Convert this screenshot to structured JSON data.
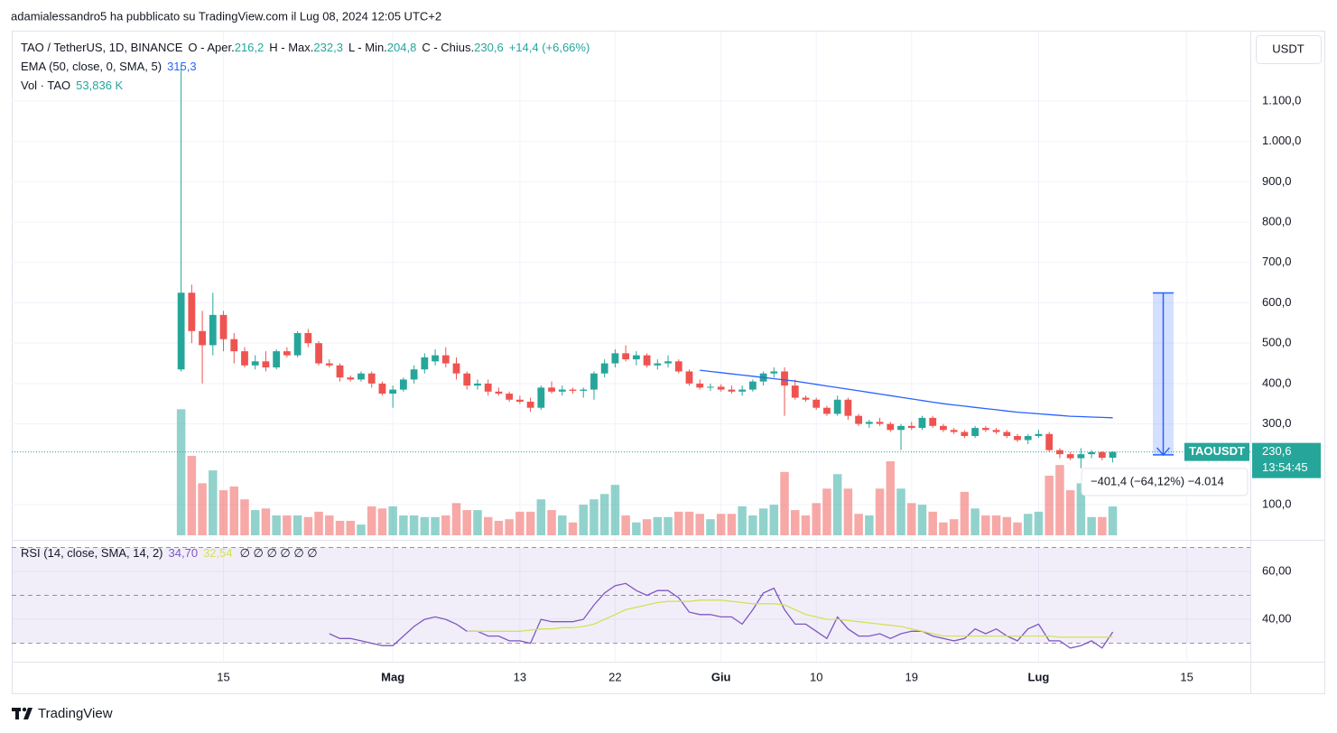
{
  "header": {
    "text": "adamialessandro5 ha pubblicato su TradingView.com il Lug 08, 2024 12:05 UTC+2"
  },
  "footer": {
    "brand": "TradingView"
  },
  "chart_data": [
    {
      "type": "candlestick",
      "symbol": "TAO / TetherUS, 1D, BINANCE",
      "ohlc_legend": [
        {
          "key": "O - Aper.",
          "value": "216,2"
        },
        {
          "key": "H - Max.",
          "value": "232,3"
        },
        {
          "key": "L - Min.",
          "value": "204,8"
        },
        {
          "key": "C - Chius.",
          "value": "230,6"
        }
      ],
      "change": "+14,4 (+6,66%)",
      "currency": "USDT",
      "x": [
        0,
        1,
        2,
        3,
        4,
        5,
        6,
        7,
        8,
        9,
        10,
        11,
        12,
        13,
        14,
        15,
        16,
        17,
        18,
        19,
        20,
        21,
        22,
        23,
        24,
        25,
        26,
        27,
        28,
        29,
        30,
        31,
        32,
        33,
        34,
        35,
        36,
        37,
        38,
        39,
        40,
        41,
        42,
        43,
        44,
        45,
        46,
        47,
        48,
        49,
        50,
        51,
        52,
        53,
        54,
        55,
        56,
        57,
        58,
        59,
        60,
        61,
        62,
        63,
        64,
        65,
        66,
        67,
        68,
        69,
        70,
        71,
        72,
        73,
        74,
        75,
        76,
        77,
        78,
        79,
        80,
        81,
        82,
        83,
        84,
        85,
        86,
        87,
        88
      ],
      "xlim": [
        -16,
        101
      ],
      "xticks": [
        {
          "value": 4,
          "label": "15"
        },
        {
          "value": 20,
          "label": "Mag"
        },
        {
          "value": 32,
          "label": "13"
        },
        {
          "value": 41,
          "label": "22"
        },
        {
          "value": 51,
          "label": "Giu"
        },
        {
          "value": 60,
          "label": "10"
        },
        {
          "value": 69,
          "label": "19"
        },
        {
          "value": 81,
          "label": "Lug"
        },
        {
          "value": 95,
          "label": "15"
        }
      ],
      "ylim": [
        24,
        1272
      ],
      "yticks": [
        {
          "value": 100,
          "label": "100,0"
        },
        {
          "value": 300,
          "label": "300,0"
        },
        {
          "value": 400,
          "label": "400,0"
        },
        {
          "value": 500,
          "label": "500,0"
        },
        {
          "value": 600,
          "label": "600,0"
        },
        {
          "value": 700,
          "label": "700,0"
        },
        {
          "value": 800,
          "label": "800,0"
        },
        {
          "value": 900,
          "label": "900,0"
        },
        {
          "value": 1000,
          "label": "1.000,0"
        },
        {
          "value": 1100,
          "label": "1.100,0"
        }
      ],
      "grid": true,
      "up_color": "#26a69a",
      "down_color": "#ef5350",
      "open": [
        435,
        625,
        530,
        495,
        570,
        510,
        480,
        445,
        455,
        440,
        480,
        470,
        525,
        500,
        450,
        445,
        415,
        410,
        425,
        400,
        375,
        385,
        410,
        435,
        455,
        470,
        450,
        425,
        395,
        400,
        380,
        375,
        360,
        355,
        340,
        390,
        380,
        385,
        382,
        385,
        425,
        450,
        475,
        460,
        470,
        445,
        450,
        455,
        430,
        400,
        390,
        392,
        385,
        380,
        385,
        405,
        425,
        430,
        395,
        365,
        360,
        340,
        325,
        360,
        320,
        300,
        305,
        300,
        285,
        295,
        290,
        315,
        295,
        285,
        280,
        270,
        290,
        285,
        280,
        270,
        260,
        270,
        275,
        235,
        225,
        215,
        225,
        230,
        216.2
      ],
      "high": [
        1190,
        645,
        580,
        625,
        580,
        525,
        490,
        470,
        480,
        485,
        490,
        530,
        535,
        505,
        460,
        450,
        420,
        430,
        430,
        405,
        395,
        415,
        445,
        475,
        485,
        490,
        465,
        430,
        410,
        410,
        390,
        380,
        370,
        365,
        395,
        405,
        395,
        390,
        390,
        430,
        460,
        485,
        495,
        480,
        475,
        460,
        470,
        460,
        435,
        410,
        400,
        398,
        395,
        395,
        410,
        430,
        440,
        440,
        410,
        370,
        365,
        345,
        370,
        365,
        325,
        310,
        315,
        305,
        300,
        305,
        320,
        320,
        300,
        290,
        285,
        295,
        295,
        290,
        285,
        275,
        275,
        285,
        280,
        240,
        230,
        240,
        235,
        232,
        232.3
      ],
      "low": [
        430,
        500,
        400,
        470,
        480,
        450,
        440,
        435,
        430,
        435,
        465,
        465,
        490,
        445,
        440,
        405,
        405,
        405,
        390,
        370,
        340,
        380,
        400,
        425,
        445,
        440,
        410,
        385,
        385,
        370,
        370,
        355,
        350,
        330,
        335,
        375,
        370,
        375,
        365,
        360,
        415,
        440,
        455,
        445,
        440,
        435,
        440,
        425,
        395,
        385,
        382,
        380,
        375,
        370,
        380,
        395,
        415,
        320,
        360,
        355,
        335,
        320,
        320,
        310,
        295,
        290,
        295,
        280,
        235,
        285,
        285,
        290,
        280,
        275,
        265,
        265,
        280,
        275,
        265,
        255,
        250,
        265,
        230,
        215,
        210,
        190,
        215,
        210,
        204.8
      ],
      "close": [
        625,
        530,
        495,
        570,
        510,
        480,
        445,
        455,
        440,
        480,
        470,
        525,
        500,
        450,
        445,
        415,
        410,
        425,
        400,
        375,
        385,
        410,
        435,
        465,
        470,
        450,
        425,
        395,
        400,
        380,
        375,
        360,
        355,
        340,
        390,
        380,
        385,
        382,
        385,
        425,
        450,
        475,
        460,
        470,
        445,
        450,
        455,
        430,
        400,
        390,
        392,
        385,
        380,
        385,
        405,
        425,
        430,
        395,
        365,
        360,
        340,
        325,
        360,
        320,
        300,
        305,
        300,
        285,
        295,
        290,
        315,
        295,
        285,
        280,
        270,
        290,
        285,
        280,
        270,
        260,
        270,
        275,
        235,
        225,
        215,
        225,
        230,
        216,
        230.6
      ],
      "series": [
        {
          "name": "EMA (50, close, 0, SMA, 5)",
          "color": "#2962ff",
          "value_label": "315,3",
          "values": [
            null,
            null,
            null,
            null,
            null,
            null,
            null,
            null,
            null,
            null,
            null,
            null,
            null,
            null,
            null,
            null,
            null,
            null,
            null,
            null,
            null,
            null,
            null,
            null,
            null,
            null,
            null,
            null,
            null,
            null,
            null,
            null,
            null,
            null,
            null,
            null,
            null,
            null,
            null,
            null,
            null,
            null,
            null,
            null,
            null,
            null,
            null,
            null,
            null,
            433,
            430,
            427,
            424,
            421,
            418,
            415,
            412,
            409,
            406,
            402,
            398,
            394,
            390,
            386,
            382,
            378,
            374,
            370,
            366,
            362,
            358,
            354,
            350,
            347,
            344,
            341,
            338,
            335,
            332,
            329,
            327,
            325,
            323,
            321,
            319,
            318,
            317,
            316,
            315.3
          ]
        }
      ],
      "volume": {
        "name": "Vol · TAO",
        "value_label": "53,836 K",
        "ylim": [
          0,
          250
        ],
        "values": [
          235,
          148,
          97,
          121,
          84,
          91,
          67,
          47,
          50,
          37,
          37,
          37,
          34,
          44,
          37,
          27,
          27,
          20,
          54,
          50,
          54,
          37,
          37,
          34,
          34,
          37,
          60,
          47,
          47,
          34,
          27,
          30,
          44,
          44,
          67,
          47,
          37,
          24,
          57,
          67,
          77,
          94,
          37,
          24,
          30,
          34,
          34,
          44,
          44,
          40,
          30,
          40,
          40,
          54,
          37,
          50,
          57,
          118,
          47,
          37,
          60,
          87,
          114,
          87,
          40,
          37,
          87,
          138,
          87,
          60,
          57,
          44,
          24,
          30,
          81,
          50,
          37,
          37,
          34,
          24,
          40,
          44,
          111,
          131,
          84,
          97,
          34,
          34,
          53.836
        ]
      },
      "last_price": {
        "value": 230.6,
        "label": "230,6"
      },
      "symbol_tag": "TAOUSDT",
      "countdown": "13:54:45",
      "measure": {
        "from": 624.6,
        "to": 223.2,
        "label": "−401,4 (−64,12%) −4.014"
      }
    },
    {
      "type": "line",
      "title": "RSI (14, close, SMA, 14, 2)",
      "extra": "∅ ∅ ∅ ∅ ∅ ∅",
      "ylim": [
        22.3,
        73.2
      ],
      "yticks": [
        {
          "value": 40,
          "label": "40,00"
        },
        {
          "value": 60,
          "label": "60,00"
        }
      ],
      "bands": [
        30,
        50,
        70
      ],
      "band_color": "#7e57c2",
      "series": [
        {
          "color": "#7e57c2",
          "value_label": "34,70",
          "values": [
            null,
            null,
            null,
            null,
            null,
            null,
            null,
            null,
            null,
            null,
            null,
            null,
            null,
            null,
            34,
            32,
            32,
            31,
            30,
            29,
            29,
            33,
            37,
            40,
            41,
            40,
            38,
            35,
            35,
            33,
            33,
            31,
            31,
            30,
            40,
            39,
            39,
            39,
            40,
            46,
            51,
            54,
            55,
            52,
            50,
            52,
            52,
            49,
            43,
            42,
            42,
            41,
            41,
            38,
            44,
            51,
            53,
            44,
            38,
            38,
            35,
            32,
            41,
            36,
            33,
            33,
            34,
            32,
            34,
            35,
            35,
            33,
            32,
            31,
            32,
            36,
            34,
            36,
            33,
            31,
            36,
            38,
            31,
            31,
            28,
            29,
            31,
            28,
            34.7
          ]
        },
        {
          "color": "#d4e157",
          "value_label": "32,54",
          "values": [
            null,
            null,
            null,
            null,
            null,
            null,
            null,
            null,
            null,
            null,
            null,
            null,
            null,
            null,
            null,
            null,
            null,
            null,
            null,
            null,
            null,
            null,
            null,
            null,
            null,
            null,
            null,
            35,
            35,
            35,
            35,
            35,
            35,
            35.5,
            36,
            36,
            36.5,
            36.5,
            37,
            38,
            40,
            42,
            44,
            45,
            46,
            47,
            47.5,
            47.5,
            47.5,
            48,
            48,
            48,
            47.5,
            47,
            46.5,
            46.5,
            46.5,
            46,
            44,
            42,
            41,
            40,
            40,
            39.5,
            39,
            38.5,
            38,
            37.5,
            37,
            36,
            35,
            34,
            33,
            33,
            33,
            33,
            33,
            33,
            33,
            33,
            33,
            33,
            33,
            32.5,
            32.5,
            32.5,
            32.5,
            32.5,
            32.54
          ]
        }
      ]
    }
  ]
}
